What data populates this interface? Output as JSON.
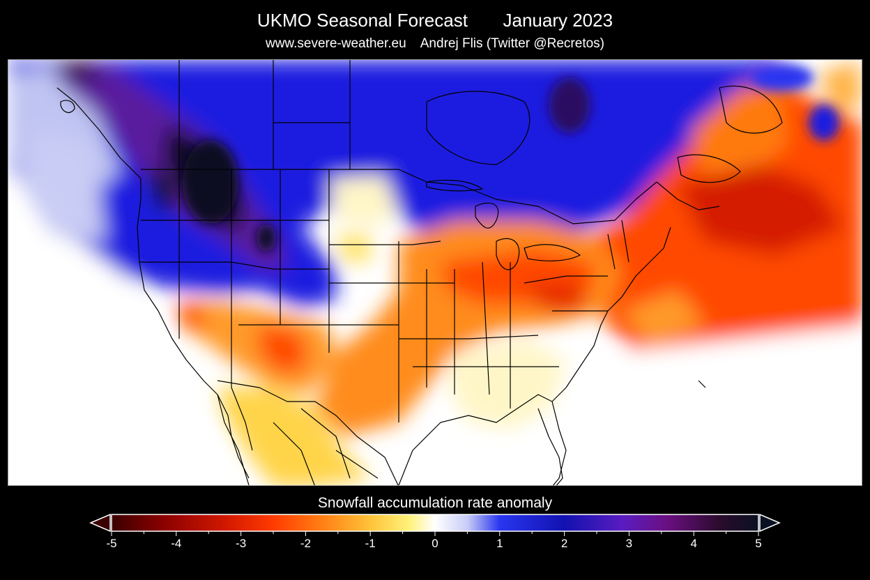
{
  "header": {
    "title": "UKMO Seasonal Forecast       January 2023",
    "subtitle": "www.severe-weather.eu    Andrej Flis (Twitter @Recretos)"
  },
  "map": {
    "region": "North America",
    "variable": "Snowfall accumulation rate anomaly",
    "palette_note": "negative anomalies warm colors, positive anomalies cool colors"
  },
  "colorbar": {
    "title": "Snowfall accumulation rate anomaly",
    "min": -5,
    "max": 5,
    "ticks": [
      "-5",
      "-4",
      "-3",
      "-2",
      "-1",
      "0",
      "1",
      "2",
      "3",
      "4",
      "5"
    ],
    "extend": "both",
    "stops": [
      {
        "value": -5,
        "color": "#3a0000"
      },
      {
        "value": -4.2,
        "color": "#8b0000"
      },
      {
        "value": -3.2,
        "color": "#d41a00"
      },
      {
        "value": -2.5,
        "color": "#ff3b00"
      },
      {
        "value": -1.8,
        "color": "#ff7a12"
      },
      {
        "value": -1.0,
        "color": "#ffc33a"
      },
      {
        "value": -0.4,
        "color": "#fff27a"
      },
      {
        "value": 0,
        "color": "#ffffff"
      },
      {
        "value": 0.5,
        "color": "#c8cdf6"
      },
      {
        "value": 1.0,
        "color": "#2936f0"
      },
      {
        "value": 2.0,
        "color": "#1212b0"
      },
      {
        "value": 2.9,
        "color": "#5a1cc0"
      },
      {
        "value": 3.6,
        "color": "#6a0f80"
      },
      {
        "value": 4.4,
        "color": "#2a0b2c"
      },
      {
        "value": 5,
        "color": "#0a1122"
      }
    ]
  },
  "colors": {
    "background": "#000000",
    "text": "#ffffff",
    "lines": "#000000"
  }
}
